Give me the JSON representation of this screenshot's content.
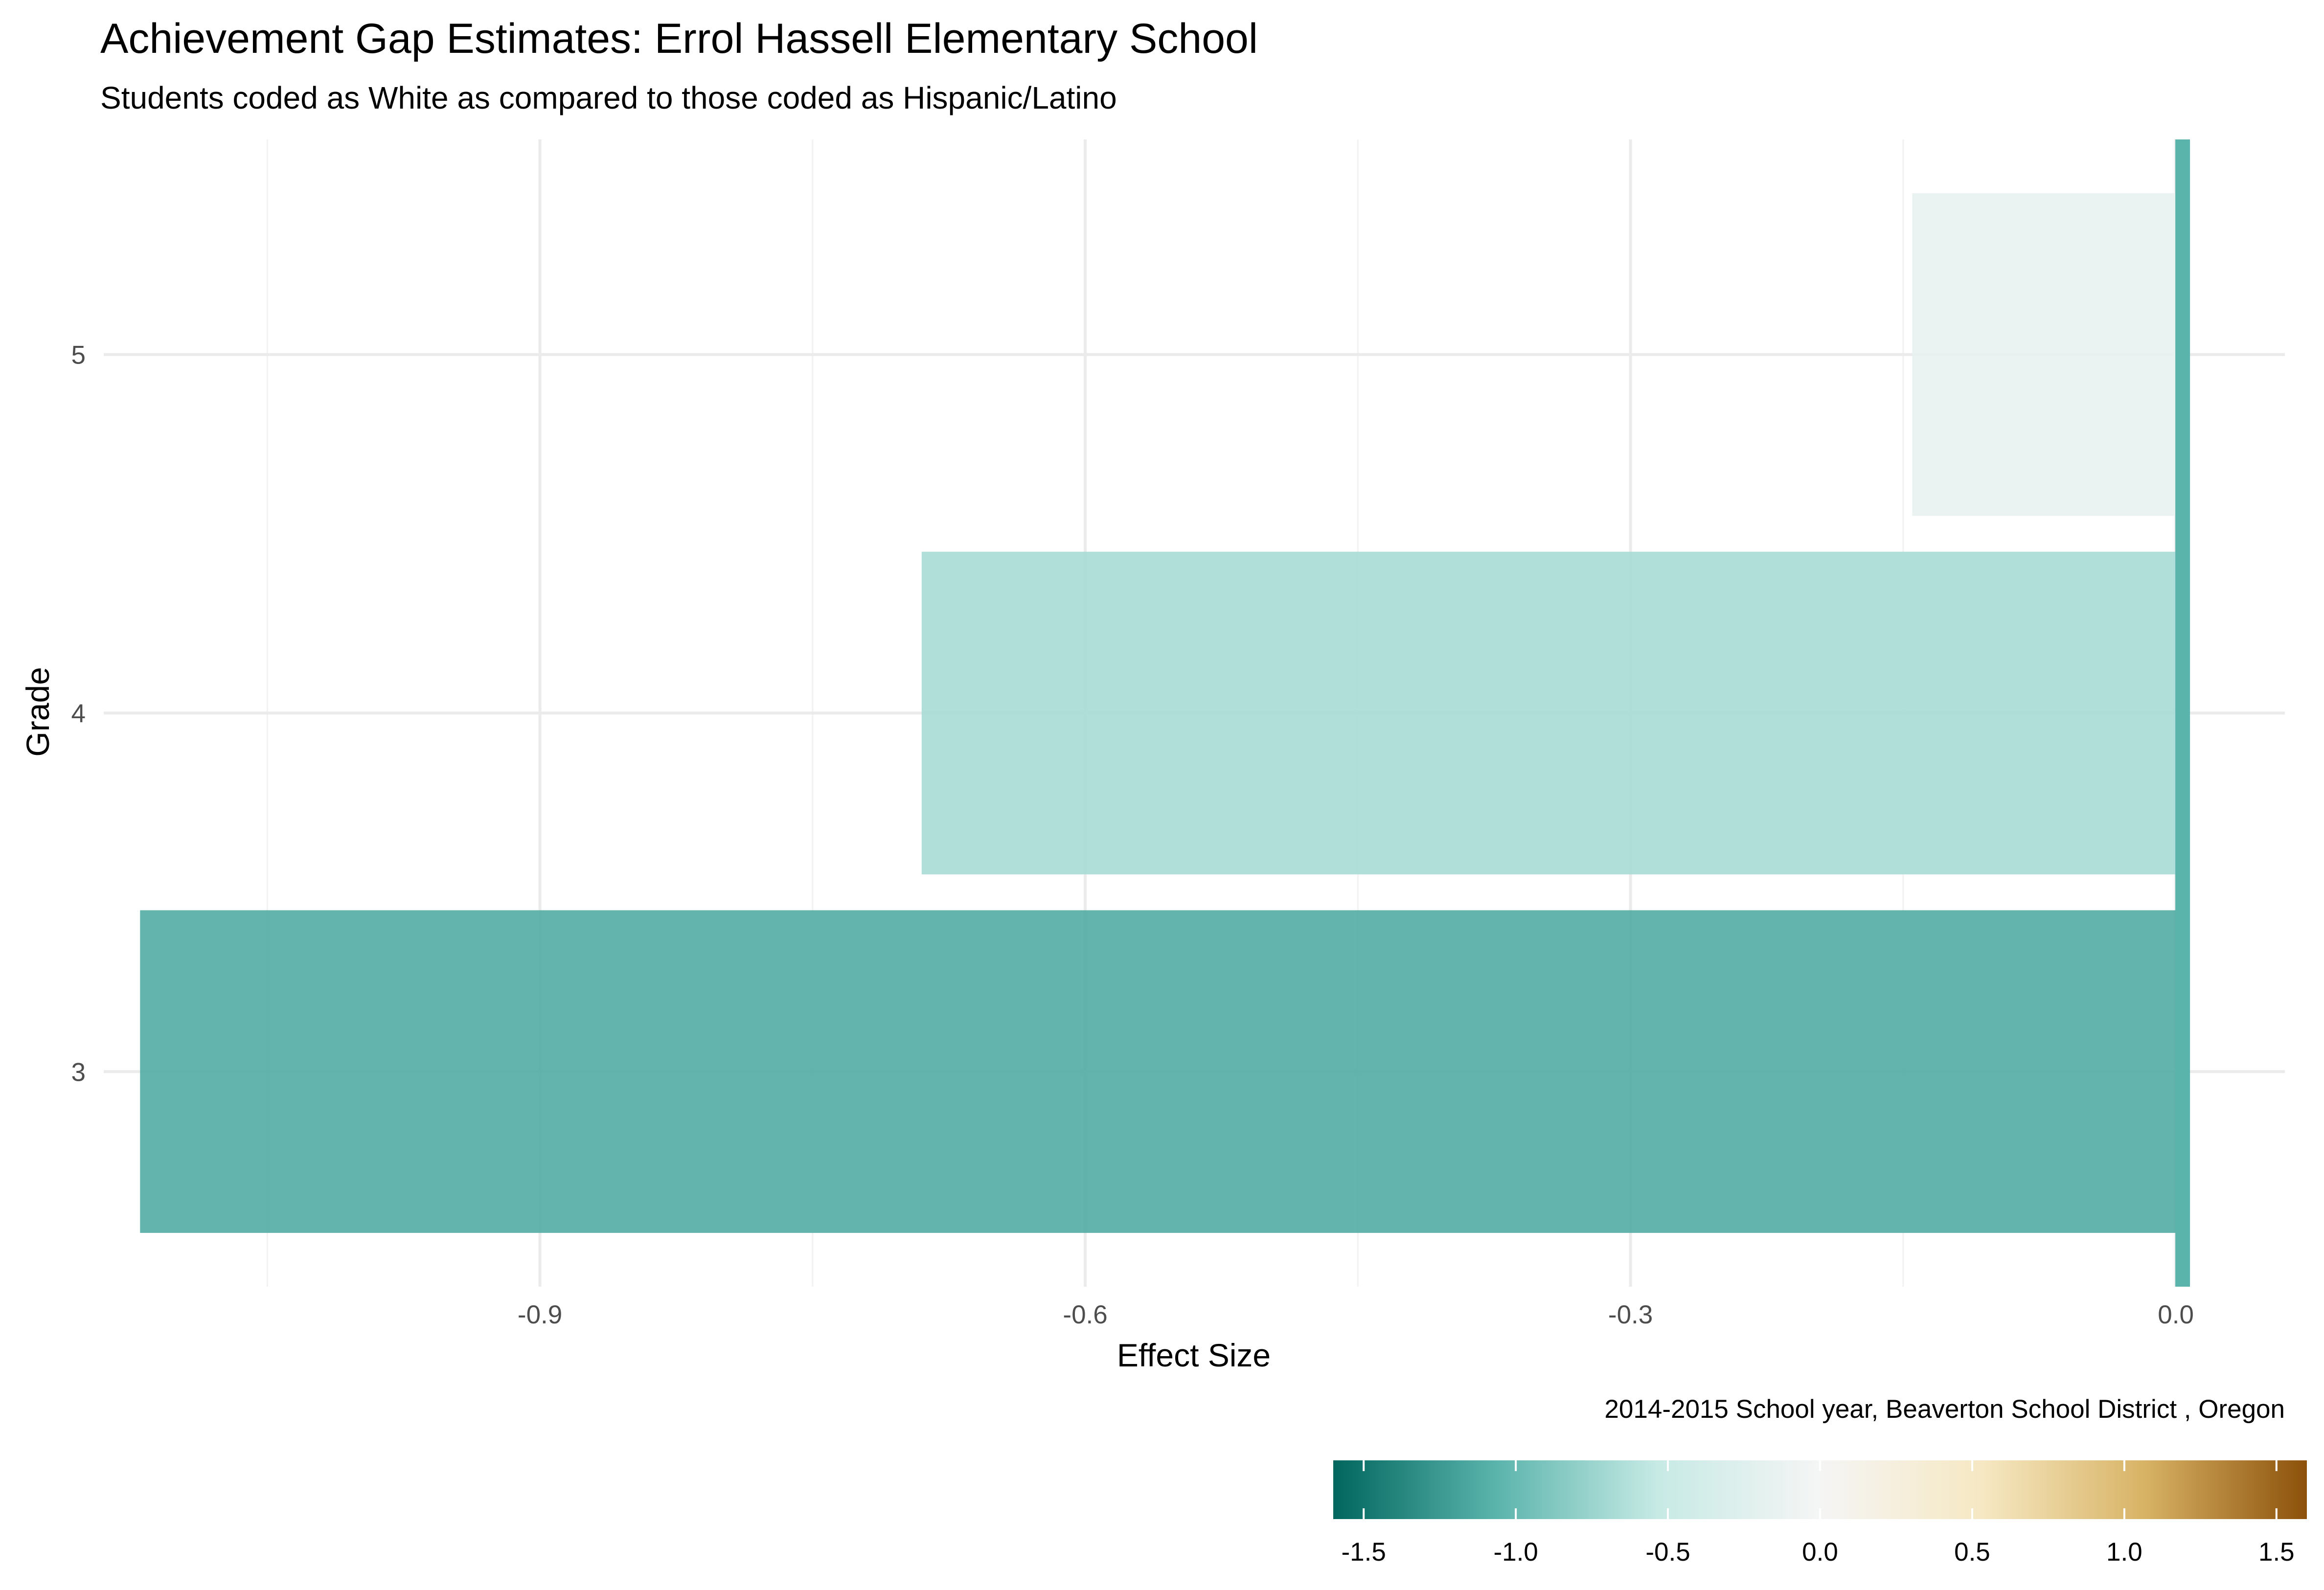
{
  "chart_data": {
    "type": "bar",
    "orientation": "horizontal",
    "title": "Achievement Gap Estimates: Errol Hassell Elementary School",
    "subtitle": "Students coded as White as compared to those coded as Hispanic/Latino",
    "xlabel": "Effect Size",
    "ylabel": "Grade",
    "caption": "2014-2015 School year,  Beaverton School District , Oregon",
    "categories": [
      "3",
      "4",
      "5"
    ],
    "values": [
      -1.12,
      -0.69,
      -0.145
    ],
    "xlim": [
      -1.14,
      0.06
    ],
    "x_ticks": [
      -0.9,
      -0.6,
      -0.3,
      0.0
    ],
    "x_tick_labels": [
      "-0.9",
      "-0.6",
      "-0.3",
      "0.0"
    ],
    "grid": true,
    "reference_line": 0,
    "reference_line_color": "#5ab4ac",
    "colorscale": {
      "range": [
        -1.6,
        1.6
      ],
      "ticks": [
        -1.5,
        -1.0,
        -0.5,
        0.0,
        0.5,
        1.0,
        1.5
      ],
      "tick_labels": [
        "-1.5",
        "-1.0",
        "-0.5",
        "0.0",
        "0.5",
        "1.0",
        "1.5"
      ],
      "colors": [
        "#01665e",
        "#5ab4ac",
        "#c7eae5",
        "#f5f5f5",
        "#f6e8c3",
        "#d8b365",
        "#8c510a"
      ],
      "legend_position": "bottom-right"
    }
  }
}
